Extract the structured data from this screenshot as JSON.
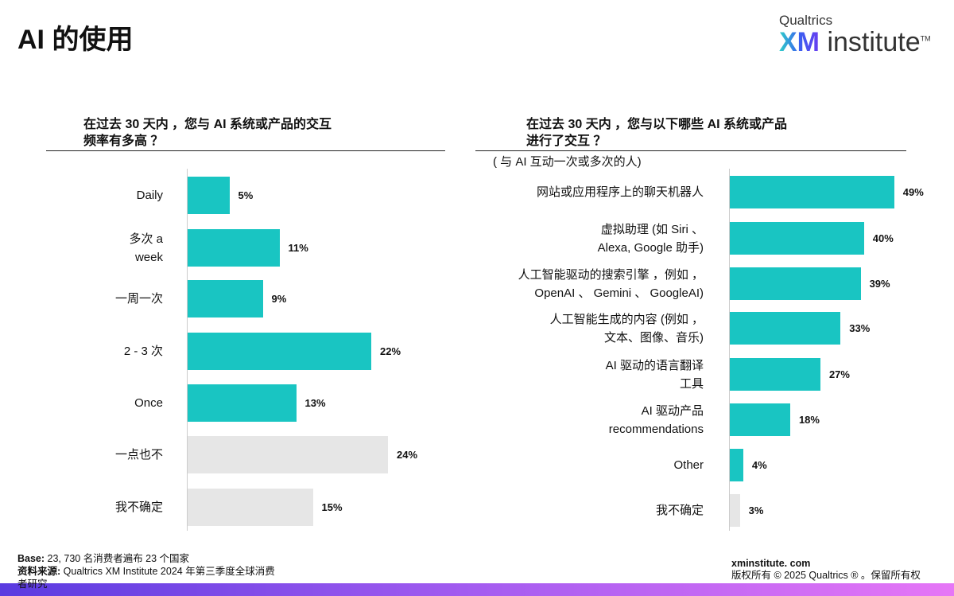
{
  "title": "AI 的使用",
  "logo": {
    "line1": "Qualtrics",
    "xm": "XM",
    "institute": "institute",
    "tm": "TM"
  },
  "colors": {
    "bar": "#19c5c2",
    "bar_gray": "#e6e6e6"
  },
  "chart_data": [
    {
      "type": "bar",
      "orientation": "horizontal",
      "title": "在过去 30 天内 ，您与 AI 系统或产品的交互\n频率有多高 ？",
      "categories": [
        "Daily",
        "多次 a week",
        "一周一次",
        "2 - 3 次",
        "Once",
        "一点也不",
        "我不确定"
      ],
      "values": [
        5,
        11,
        9,
        22,
        13,
        24,
        15
      ],
      "value_labels": [
        "5%",
        "11%",
        "9%",
        "22%",
        "13%",
        "24%",
        "15%"
      ],
      "highlight": [
        true,
        true,
        true,
        true,
        true,
        false,
        false
      ],
      "xlim": [
        0,
        24
      ]
    },
    {
      "type": "bar",
      "orientation": "horizontal",
      "title": "在过去 30 天内 ，您与以下哪些 AI 系统或产品\n进行了交互 ？",
      "subtitle": "( 与 AI 互动一次或多次的人)",
      "categories": [
        "网站或应用程序上的聊天机器人",
        "虚拟助理 (如 Siri 、\nAlexa, Google 助手)",
        "人工智能驱动的搜索引擎 ，例如 ，\nOpenAI 、 Gemini 、 GoogleAI)",
        "人工智能生成的内容 (例如 ，\n文本、图像、音乐)",
        "AI 驱动的语言翻译\n工具",
        "AI 驱动产品\nrecommendations",
        "Other",
        "我不确定"
      ],
      "values": [
        49,
        40,
        39,
        33,
        27,
        18,
        4,
        3
      ],
      "value_labels": [
        "49%",
        "40%",
        "39%",
        "33%",
        "27%",
        "18%",
        "4%",
        "3%"
      ],
      "highlight": [
        true,
        true,
        true,
        true,
        true,
        true,
        true,
        false
      ],
      "xlim": [
        0,
        49
      ]
    }
  ],
  "footer": {
    "base_label": "Base:",
    "base_text": "23, 730 名消费者遍布 23 个国家",
    "source_label": "资料来源:",
    "source_text": "Qualtrics XM Institute 2024 年第三季度全球消费",
    "source_text2": "者研究",
    "site": "xminstitute. com",
    "copyright": "版权所有 © 2025 Qualtrics ® 。保留所有权"
  }
}
